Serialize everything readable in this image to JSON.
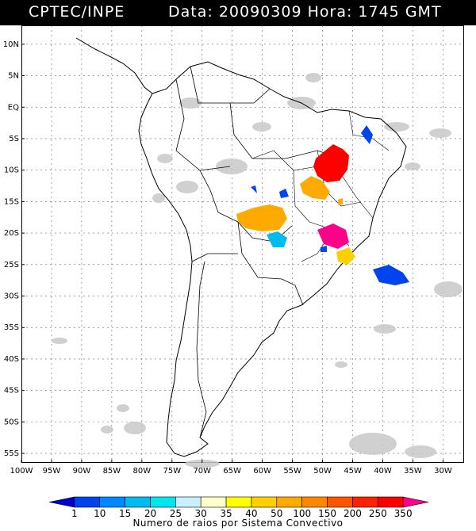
{
  "header": {
    "org": "CPTEC/INPE",
    "date_label": "Data:",
    "date": "20090309",
    "hour_label": "Hora:",
    "hour": "1745",
    "tz": "GMT"
  },
  "axes": {
    "lat_labels": [
      "10N",
      "5N",
      "EQ",
      "5S",
      "10S",
      "15S",
      "20S",
      "25S",
      "30S",
      "35S",
      "40S",
      "45S",
      "50S",
      "55S"
    ],
    "lon_labels": [
      "100W",
      "95W",
      "90W",
      "85W",
      "80W",
      "75W",
      "70W",
      "65W",
      "60W",
      "55W",
      "50W",
      "45W",
      "40W",
      "35W",
      "30W"
    ]
  },
  "legend": {
    "values": [
      "1",
      "10",
      "15",
      "20",
      "25",
      "30",
      "35",
      "40",
      "50",
      "100",
      "150",
      "200",
      "250",
      "350"
    ],
    "colors": [
      "#0000cc",
      "#0044ee",
      "#0088ff",
      "#00bbee",
      "#00e5ee",
      "#c8f0ff",
      "#ffffcc",
      "#ffff00",
      "#ffd000",
      "#ffaa00",
      "#ff8800",
      "#ff5500",
      "#ff2200",
      "#ff0000",
      "#ff0088"
    ],
    "caption": "Numero de raios por Sistema Convectivo"
  },
  "colors": {
    "cloud": "#c8c8c8",
    "coast": "#000000",
    "grid": "#666666"
  }
}
